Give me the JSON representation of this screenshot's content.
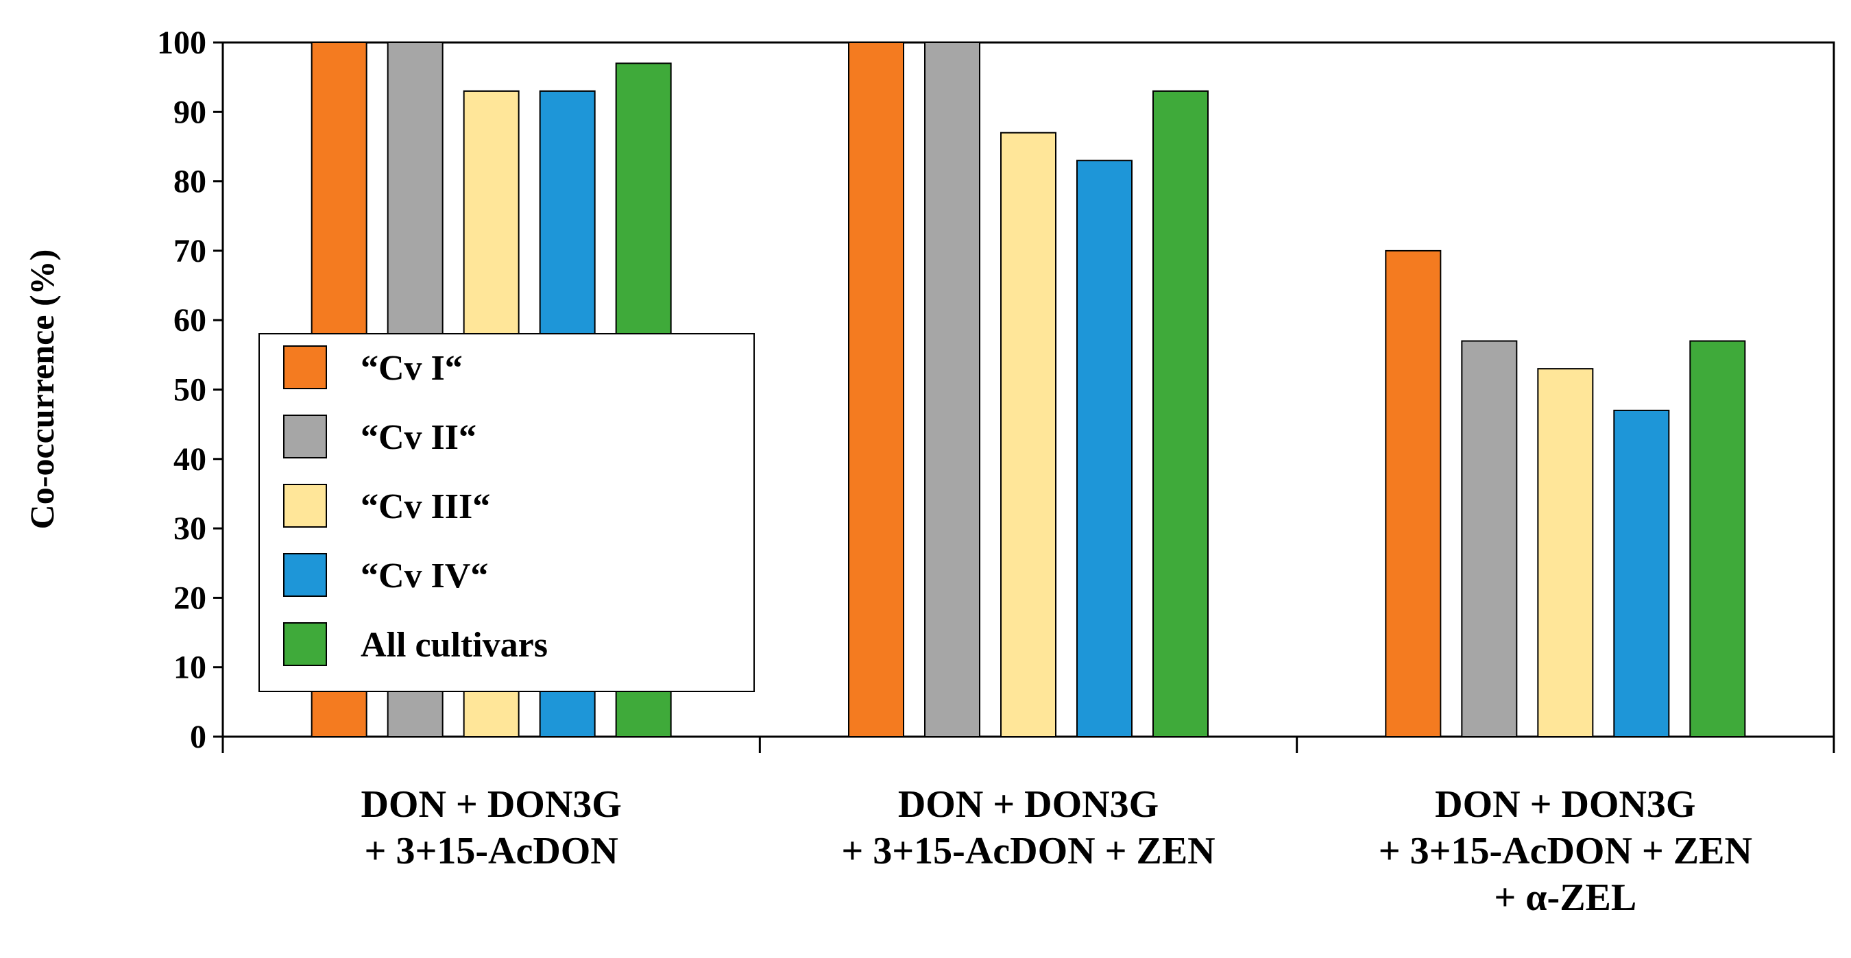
{
  "chart_data": {
    "type": "bar",
    "title": "",
    "xlabel": "",
    "ylabel": "Co-occurrence (%)",
    "ylim": [
      0,
      100
    ],
    "yticks": [
      0,
      10,
      20,
      30,
      40,
      50,
      60,
      70,
      80,
      90,
      100
    ],
    "grid": false,
    "legend_position": "left-middle",
    "categories": [
      [
        "DON + DON3G",
        "+ 3+15-AcDON"
      ],
      [
        "DON + DON3G",
        "+ 3+15-AcDON + ZEN"
      ],
      [
        "DON + DON3G",
        "+ 3+15-AcDON + ZEN",
        "+ α-ZEL"
      ]
    ],
    "series": [
      {
        "name": "“Cv I“",
        "color": "#F47B20",
        "values": [
          100,
          100,
          70
        ]
      },
      {
        "name": "“Cv II“",
        "color": "#A6A6A6",
        "values": [
          100,
          100,
          57
        ]
      },
      {
        "name": "“Cv III“",
        "color": "#FFE699",
        "values": [
          93,
          87,
          53
        ]
      },
      {
        "name": "“Cv IV“",
        "color": "#1E96D8",
        "values": [
          93,
          83,
          47
        ]
      },
      {
        "name": "All cultivars",
        "color": "#3FAA3A",
        "values": [
          97,
          93,
          57
        ]
      }
    ]
  }
}
